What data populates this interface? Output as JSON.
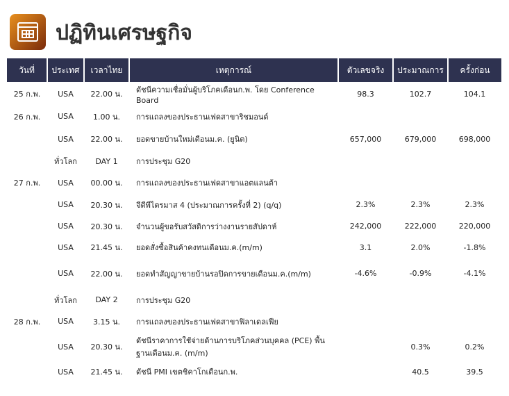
{
  "header": {
    "title": "ปฏิทินเศรษฐกิจ",
    "icon": "calendar-icon"
  },
  "columns": [
    "วันที่",
    "ประเทศ",
    "เวลาไทย",
    "เหตุการณ์",
    "ตัวเลขจริง",
    "ประมาณการ",
    "ครั้งก่อน"
  ],
  "rows": [
    {
      "date": "25 ก.พ.",
      "country": "USA",
      "time": "22.00 น.",
      "event": "ดัชนีความเชื่อมั่นผู้บริโภคเดือนก.พ. โดย Conference Board",
      "actual": "98.3",
      "forecast": "102.7",
      "previous": "104.1"
    },
    {
      "date": "26 ก.พ.",
      "country": "USA",
      "time": "1.00 น.",
      "event": "การแถลงของประธานเฟดสาขาริชมอนด์",
      "actual": "",
      "forecast": "",
      "previous": ""
    },
    {
      "date": "",
      "country": "USA",
      "time": "22.00 น.",
      "event": "ยอดขายบ้านใหม่เดือนม.ค. (ยูนิต)",
      "actual": "657,000",
      "forecast": "679,000",
      "previous": "698,000"
    },
    {
      "date": "",
      "country": "ทั่วโลก",
      "time": "DAY 1",
      "event": "การประชุม G20",
      "actual": "",
      "forecast": "",
      "previous": ""
    },
    {
      "date": "27 ก.พ.",
      "country": "USA",
      "time": "00.00 น.",
      "event": "การแถลงของประธานเฟดสาขาแอตแลนต้า",
      "actual": "",
      "forecast": "",
      "previous": ""
    },
    {
      "date": "",
      "country": "USA",
      "time": "20.30 น.",
      "event": "จีดีพีไตรมาส 4 (ประมาณการครั้งที่ 2) (q/q)",
      "actual": "2.3%",
      "forecast": "2.3%",
      "previous": "2.3%"
    },
    {
      "date": "",
      "country": "USA",
      "time": "20.30 น.",
      "event": "จำนวนผู้ขอรับสวัสดิการว่างงานรายสัปดาห์",
      "actual": "242,000",
      "forecast": "222,000",
      "previous": "220,000"
    },
    {
      "date": "",
      "country": "USA",
      "time": "21.45 น.",
      "event": "ยอดสั่งซื้อสินค้าคงทนเดือนม.ค.(m/m)",
      "actual": "3.1",
      "forecast": "2.0%",
      "previous": "-1.8%"
    },
    {
      "date": "",
      "country": "USA",
      "time": "22.00 น.",
      "event": "ยอดทำสัญญาขายบ้านรอปิดการขายเดือนม.ค.(m/m)",
      "actual": "-4.6%",
      "forecast": "-0.9%",
      "previous": "-4.1%"
    },
    {
      "date": "",
      "country": "ทั่วโลก",
      "time": "DAY 2",
      "event": "การประชุม G20",
      "actual": "",
      "forecast": "",
      "previous": ""
    },
    {
      "date": "28 ก.พ.",
      "country": "USA",
      "time": "3.15 น.",
      "event": "การแถลงของประธานเฟดสาขาฟิลาเดลเฟีย",
      "actual": "",
      "forecast": "",
      "previous": ""
    },
    {
      "date": "",
      "country": "USA",
      "time": "20.30 น.",
      "event": "ดัชนีราคาการใช้จ่ายด้านการบริโภคส่วนบุคคล (PCE) พื้นฐานเดือนม.ค. (m/m)",
      "actual": "",
      "forecast": "0.3%",
      "previous": "0.2%"
    },
    {
      "date": "",
      "country": "USA",
      "time": "21.45 น.",
      "event": "ดัชนี PMI เขตชิคาโกเดือนก.พ.",
      "actual": "",
      "forecast": "40.5",
      "previous": "39.5"
    }
  ]
}
